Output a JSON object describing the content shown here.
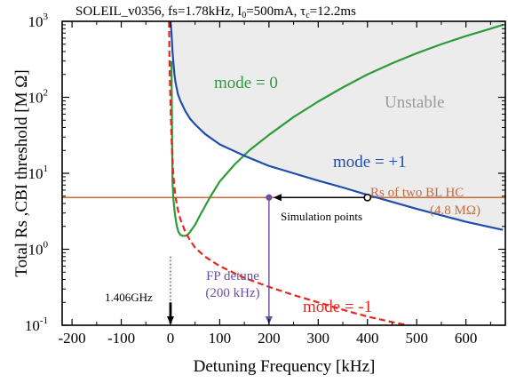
{
  "chart_data": {
    "type": "line",
    "title": "SOLEIL_v0356, fs=1.78kHz, I",
    "title_sub1": "0",
    "title_mid": "=500mA, τ",
    "title_sub2": "c",
    "title_end": "=12.2ms",
    "xlabel": "Detuning Frequency [kHz]",
    "ylabel": "Total Rs ,CBI threshold [M Ω]",
    "xlim": [
      -220,
      680
    ],
    "ylim_log10": [
      -1,
      3
    ],
    "log_scale_y": true,
    "grid": false,
    "x_ticks": [
      "-200",
      "-100",
      "0",
      "100",
      "200",
      "300",
      "400",
      "500",
      "600"
    ],
    "x_tick_values": [
      -200,
      -100,
      0,
      100,
      200,
      300,
      400,
      500,
      600
    ],
    "y_ticks": [
      {
        "base": "10",
        "exp": "-1",
        "value": 0.1
      },
      {
        "base": "10",
        "exp": "0",
        "value": 1
      },
      {
        "base": "10",
        "exp": "1",
        "value": 10
      },
      {
        "base": "10",
        "exp": "2",
        "value": 100
      },
      {
        "base": "10",
        "exp": "3",
        "value": 1000
      }
    ],
    "colors": {
      "mode0": "#2e9b3a",
      "mode1": "#1f4eaa",
      "modeminus1": "#e8251f",
      "rs_line": "#c96a3a",
      "unstable_fill": "#ececec",
      "fp": "#6a4fa0",
      "unstable_text": "#9a9a9a"
    },
    "series": [
      {
        "name": "mode = 0",
        "style": "solid",
        "x": [
          2,
          4,
          6,
          8,
          10,
          13,
          16,
          20,
          25,
          30,
          35,
          40,
          50,
          60,
          80,
          100,
          130,
          160,
          200,
          250,
          300,
          350,
          400,
          450,
          500,
          550,
          600,
          650,
          675
        ],
        "y": [
          300,
          8,
          4.5,
          3.3,
          2.6,
          2.0,
          1.7,
          1.55,
          1.5,
          1.5,
          1.55,
          1.7,
          2.1,
          2.8,
          4.8,
          7.8,
          13,
          20,
          32,
          55,
          88,
          135,
          200,
          280,
          380,
          500,
          640,
          800,
          900
        ]
      },
      {
        "name": "mode = +1",
        "style": "solid",
        "x": [
          0,
          2,
          4,
          6,
          8,
          10,
          15,
          20,
          30,
          40,
          50,
          70,
          100,
          150,
          200,
          250,
          300,
          350,
          400,
          450,
          500,
          550,
          600,
          650,
          675
        ],
        "y": [
          1000,
          700,
          400,
          280,
          200,
          160,
          110,
          90,
          66,
          52,
          44,
          33,
          24,
          17,
          12.5,
          10,
          8,
          6.5,
          5.2,
          4.2,
          3.4,
          2.8,
          2.3,
          1.95,
          1.8
        ]
      },
      {
        "name": "mode = -1",
        "style": "dashed",
        "x": [
          -3,
          -2,
          -1,
          0,
          1,
          2,
          4,
          6,
          10,
          15,
          20,
          30,
          40,
          50,
          70,
          100,
          150,
          200,
          250,
          300,
          350,
          400,
          450,
          500,
          550,
          580
        ],
        "y": [
          1000,
          300,
          150,
          80,
          50,
          30,
          15,
          9,
          5,
          3.3,
          2.5,
          1.7,
          1.3,
          1.05,
          0.8,
          0.6,
          0.42,
          0.32,
          0.25,
          0.2,
          0.16,
          0.13,
          0.11,
          0.095,
          0.085,
          0.08
        ]
      }
    ],
    "rs_level": 4.8,
    "simulation_points": {
      "x": [
        200,
        400
      ],
      "y": [
        4.8,
        4.8
      ]
    },
    "fp_detune_x": 200,
    "annotations": {
      "mode0": "mode = 0",
      "mode1": "mode = +1",
      "modeminus1": "mode = -1",
      "unstable": "Unstable",
      "rs_line1": "Rs of two BL HC",
      "rs_line2": "(4.8 MΩ)",
      "simulation": "Simulation points",
      "fp1": "FP detune",
      "fp2": "(200 kHz)",
      "ghz": "1.406GHz"
    }
  }
}
